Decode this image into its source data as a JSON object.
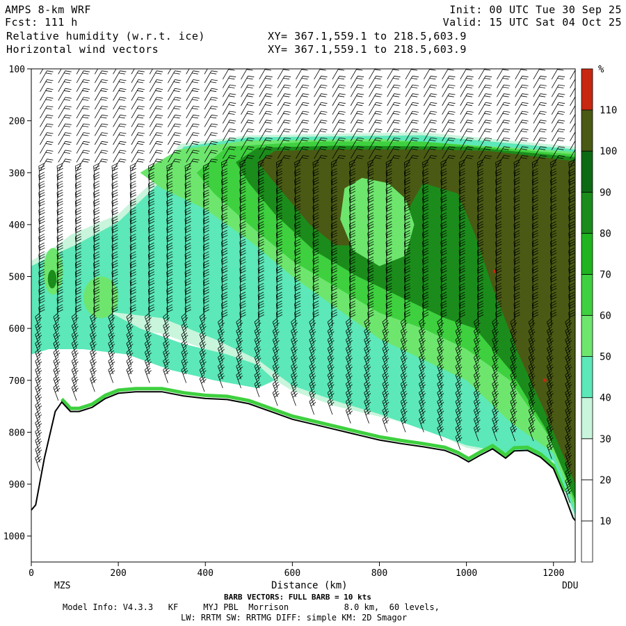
{
  "header": {
    "model": "AMPS 8-km WRF",
    "fcst": "Fcst: 111 h",
    "init": "Init: 00 UTC Tue 30 Sep 25",
    "valid": "Valid: 15 UTC Sat 04 Oct 25",
    "field1": "Relative humidity (w.r.t. ice)",
    "field2": "Horizontal wind vectors",
    "xy1": "XY= 367.1,559.1 to 218.5,603.9",
    "xy2": "XY= 367.1,559.1 to 218.5,603.9"
  },
  "footer": {
    "barb_note": "BARB VECTORS:  FULL BARB = 10 kts",
    "model_info": "Model Info: V4.3.3   KF     MYJ PBL  Morrison           8.0 km,  60 levels,",
    "physics": "LW: RRTM SW: RRTMG   DIFF: simple KM: 2D Smagor"
  },
  "chart_data": {
    "type": "heatmap",
    "title": "Relative humidity (w.r.t. ice)",
    "xlabel": "Distance (km)",
    "ylabel": "",
    "xlim": [
      0,
      1250
    ],
    "ylim": [
      1050,
      100
    ],
    "x_ticks": [
      0,
      200,
      400,
      600,
      800,
      1000,
      1200
    ],
    "y_ticks": [
      100,
      200,
      300,
      400,
      500,
      600,
      700,
      800,
      900,
      1000
    ],
    "x_endpoint_labels": {
      "left": "MZS",
      "right": "DDU"
    },
    "colorbar": {
      "unit": "%",
      "levels": [
        10,
        20,
        30,
        40,
        50,
        60,
        70,
        80,
        90,
        100,
        110
      ],
      "colors": [
        "#ffffff",
        "#ffffff",
        "#ffffff",
        "#c8f5dc",
        "#5ce8b8",
        "#6ee66e",
        "#3fd03f",
        "#1fb41f",
        "#1b8c1b",
        "#0c6a14",
        "#4a5a14",
        "#c82810"
      ]
    },
    "terrain_surface": [
      [
        0,
        950
      ],
      [
        10,
        940
      ],
      [
        30,
        850
      ],
      [
        55,
        760
      ],
      [
        70,
        742
      ],
      [
        90,
        760
      ],
      [
        110,
        760
      ],
      [
        140,
        752
      ],
      [
        170,
        735
      ],
      [
        200,
        725
      ],
      [
        240,
        722
      ],
      [
        300,
        722
      ],
      [
        350,
        730
      ],
      [
        400,
        735
      ],
      [
        450,
        737
      ],
      [
        500,
        745
      ],
      [
        550,
        760
      ],
      [
        600,
        775
      ],
      [
        650,
        785
      ],
      [
        700,
        795
      ],
      [
        750,
        805
      ],
      [
        800,
        815
      ],
      [
        850,
        822
      ],
      [
        900,
        828
      ],
      [
        950,
        835
      ],
      [
        980,
        845
      ],
      [
        1005,
        857
      ],
      [
        1030,
        845
      ],
      [
        1060,
        832
      ],
      [
        1090,
        850
      ],
      [
        1110,
        836
      ],
      [
        1140,
        835
      ],
      [
        1170,
        848
      ],
      [
        1200,
        870
      ],
      [
        1225,
        920
      ],
      [
        1245,
        965
      ],
      [
        1250,
        970
      ]
    ],
    "humidity_regions": [
      {
        "color": "#c8f5dc",
        "label": "40",
        "polygon": [
          [
            0,
            470
          ],
          [
            60,
            440
          ],
          [
            90,
            420
          ],
          [
            200,
            380
          ],
          [
            300,
            300
          ],
          [
            340,
            245
          ],
          [
            500,
            228
          ],
          [
            700,
            225
          ],
          [
            900,
            222
          ],
          [
            1250,
            250
          ],
          [
            1250,
            970
          ],
          [
            1200,
            860
          ],
          [
            1000,
            830
          ],
          [
            900,
            790
          ],
          [
            800,
            770
          ],
          [
            700,
            750
          ],
          [
            600,
            720
          ],
          [
            520,
            680
          ],
          [
            400,
            640
          ],
          [
            300,
            610
          ],
          [
            200,
            600
          ],
          [
            100,
            590
          ],
          [
            0,
            580
          ]
        ]
      },
      {
        "color": "#5ce8b8",
        "label": "50",
        "polygon": [
          [
            0,
            480
          ],
          [
            60,
            455
          ],
          [
            100,
            440
          ],
          [
            200,
            395
          ],
          [
            300,
            315
          ],
          [
            350,
            250
          ],
          [
            500,
            232
          ],
          [
            700,
            230
          ],
          [
            900,
            228
          ],
          [
            1250,
            255
          ],
          [
            1250,
            960
          ],
          [
            1200,
            855
          ],
          [
            1000,
            825
          ],
          [
            800,
            765
          ],
          [
            700,
            740
          ],
          [
            600,
            710
          ],
          [
            520,
            660
          ],
          [
            420,
            620
          ],
          [
            300,
            580
          ],
          [
            200,
            570
          ],
          [
            100,
            560
          ],
          [
            0,
            560
          ]
        ]
      },
      {
        "color": "#6ee66e",
        "label": "70",
        "polygon": [
          [
            250,
            300
          ],
          [
            340,
            255
          ],
          [
            500,
            238
          ],
          [
            800,
            235
          ],
          [
            1250,
            260
          ],
          [
            1250,
            950
          ],
          [
            1200,
            840
          ],
          [
            1100,
            780
          ],
          [
            1050,
            740
          ],
          [
            1000,
            700
          ],
          [
            900,
            660
          ],
          [
            800,
            620
          ],
          [
            700,
            560
          ],
          [
            600,
            500
          ],
          [
            500,
            430
          ],
          [
            400,
            370
          ],
          [
            300,
            330
          ]
        ]
      },
      {
        "color": "#3fd03f",
        "label": "80",
        "polygon": [
          [
            380,
            300
          ],
          [
            450,
            250
          ],
          [
            650,
            240
          ],
          [
            900,
            240
          ],
          [
            1250,
            265
          ],
          [
            1250,
            940
          ],
          [
            1200,
            820
          ],
          [
            1150,
            760
          ],
          [
            1100,
            700
          ],
          [
            1000,
            640
          ],
          [
            900,
            600
          ],
          [
            800,
            570
          ],
          [
            700,
            520
          ],
          [
            600,
            470
          ],
          [
            500,
            400
          ],
          [
            420,
            340
          ]
        ]
      },
      {
        "color": "#1b8c1b",
        "label": "90",
        "polygon": [
          [
            470,
            280
          ],
          [
            520,
            252
          ],
          [
            700,
            248
          ],
          [
            1000,
            250
          ],
          [
            1250,
            270
          ],
          [
            1250,
            930
          ],
          [
            1180,
            790
          ],
          [
            1100,
            680
          ],
          [
            1020,
            600
          ],
          [
            950,
            580
          ],
          [
            850,
            540
          ],
          [
            750,
            500
          ],
          [
            650,
            450
          ],
          [
            560,
            380
          ],
          [
            500,
            320
          ]
        ]
      },
      {
        "color": "#4a5a14",
        "label": "100",
        "polygon": [
          [
            520,
            280
          ],
          [
            560,
            258
          ],
          [
            700,
            255
          ],
          [
            900,
            255
          ],
          [
            1050,
            258
          ],
          [
            1250,
            278
          ],
          [
            1250,
            900
          ],
          [
            1180,
            760
          ],
          [
            1120,
            650
          ],
          [
            1060,
            520
          ],
          [
            1020,
            420
          ],
          [
            980,
            340
          ],
          [
            940,
            330
          ],
          [
            900,
            320
          ],
          [
            860,
            380
          ],
          [
            820,
            420
          ],
          [
            760,
            440
          ],
          [
            700,
            440
          ],
          [
            640,
            400
          ],
          [
            580,
            340
          ]
        ]
      },
      {
        "color": "#6ee66e",
        "label": "70",
        "polygon": [
          [
            720,
            330
          ],
          [
            760,
            310
          ],
          [
            820,
            320
          ],
          [
            860,
            350
          ],
          [
            880,
            400
          ],
          [
            860,
            460
          ],
          [
            800,
            480
          ],
          [
            740,
            450
          ],
          [
            710,
            390
          ]
        ]
      }
    ],
    "low_level_humid_band": {
      "color": "#5ce8b8",
      "polygon": [
        [
          0,
          530
        ],
        [
          60,
          520
        ],
        [
          150,
          555
        ],
        [
          250,
          600
        ],
        [
          350,
          630
        ],
        [
          450,
          650
        ],
        [
          520,
          670
        ],
        [
          560,
          700
        ],
        [
          520,
          715
        ],
        [
          420,
          700
        ],
        [
          320,
          680
        ],
        [
          220,
          650
        ],
        [
          120,
          640
        ],
        [
          40,
          640
        ],
        [
          0,
          650
        ]
      ]
    },
    "lower_left_humid_cells": [
      {
        "color": "#6ee66e",
        "center": [
          50,
          490
        ],
        "rx": 22,
        "ry": 45
      },
      {
        "color": "#1b8c1b",
        "center": [
          48,
          505
        ],
        "rx": 10,
        "ry": 18
      },
      {
        "color": "#6ee66e",
        "center": [
          160,
          540
        ],
        "rx": 40,
        "ry": 40
      }
    ],
    "red_spots": [
      [
        1065,
        490
      ],
      [
        1180,
        700
      ]
    ]
  },
  "colors": {
    "axis": "#000000",
    "terrain_line": "#000000",
    "barb": "#000000"
  }
}
